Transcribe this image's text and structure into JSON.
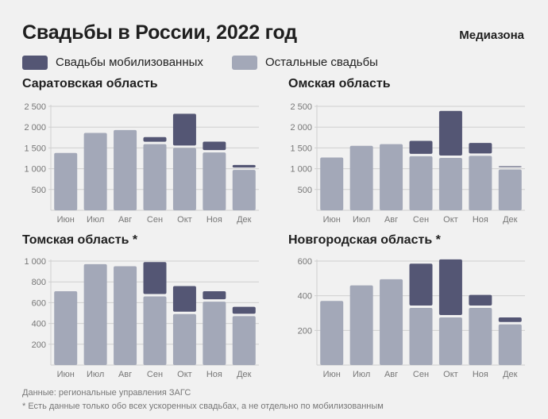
{
  "header": {
    "title": "Свадьбы в России, 2022 год",
    "brand": "Медиазона"
  },
  "legend": [
    {
      "label": "Свадьбы мобилизованных",
      "color": "#545674"
    },
    {
      "label": "Остальные свадьбы",
      "color": "#a3a8b8"
    }
  ],
  "colors": {
    "mobilized": "#545674",
    "other": "#a3a8b8",
    "grid": "#cfcfcf",
    "tick_text": "#777777"
  },
  "chart_data": [
    {
      "type": "bar",
      "stacked": true,
      "title": "Саратовская область",
      "categories": [
        "Июн",
        "Июл",
        "Авг",
        "Сен",
        "Окт",
        "Ноя",
        "Дек"
      ],
      "yticks": [
        "500",
        "1 000",
        "1 500",
        "2 000",
        "2 500"
      ],
      "ylim": [
        0,
        2500
      ],
      "series": [
        {
          "name": "Остальные свадьбы",
          "values": [
            1380,
            1860,
            1930,
            1590,
            1500,
            1390,
            970
          ]
        },
        {
          "name": "Свадьбы мобилизованных",
          "values": [
            0,
            0,
            0,
            170,
            820,
            260,
            120
          ]
        }
      ]
    },
    {
      "type": "bar",
      "stacked": true,
      "title": "Омская область",
      "categories": [
        "Июн",
        "Июл",
        "Авг",
        "Сен",
        "Окт",
        "Ноя",
        "Дек"
      ],
      "yticks": [
        "500",
        "1 000",
        "1 500",
        "2 000",
        "2 500"
      ],
      "ylim": [
        0,
        2500
      ],
      "series": [
        {
          "name": "Остальные свадьбы",
          "values": [
            1270,
            1550,
            1590,
            1300,
            1260,
            1310,
            980
          ]
        },
        {
          "name": "Свадьбы мобилизованных",
          "values": [
            0,
            0,
            0,
            370,
            1130,
            310,
            80
          ]
        }
      ]
    },
    {
      "type": "bar",
      "stacked": true,
      "title": "Томская область *",
      "categories": [
        "Июн",
        "Июл",
        "Авг",
        "Сен",
        "Окт",
        "Ноя",
        "Дек"
      ],
      "yticks": [
        "200",
        "400",
        "600",
        "800",
        "1 000"
      ],
      "ylim": [
        0,
        1000
      ],
      "series": [
        {
          "name": "Остальные свадьбы",
          "values": [
            710,
            970,
            950,
            660,
            490,
            610,
            470
          ]
        },
        {
          "name": "Свадьбы мобилизованных",
          "values": [
            0,
            0,
            0,
            330,
            270,
            100,
            90
          ]
        }
      ]
    },
    {
      "type": "bar",
      "stacked": true,
      "title": "Новгородская область *",
      "categories": [
        "Июн",
        "Июл",
        "Авг",
        "Сен",
        "Окт",
        "Ноя",
        "Дек"
      ],
      "yticks": [
        "200",
        "400",
        "600"
      ],
      "ylim": [
        0,
        600
      ],
      "series": [
        {
          "name": "Остальные свадьбы",
          "values": [
            370,
            460,
            495,
            330,
            275,
            330,
            235
          ]
        },
        {
          "name": "Свадьбы мобилизованных",
          "values": [
            0,
            0,
            0,
            255,
            335,
            75,
            40
          ]
        }
      ]
    }
  ],
  "footer": {
    "source": "Данные: региональные управления ЗАГС",
    "note": "* Есть данные только обо всех ускоренных свадьбах, а не отдельно по мобилизованным"
  }
}
